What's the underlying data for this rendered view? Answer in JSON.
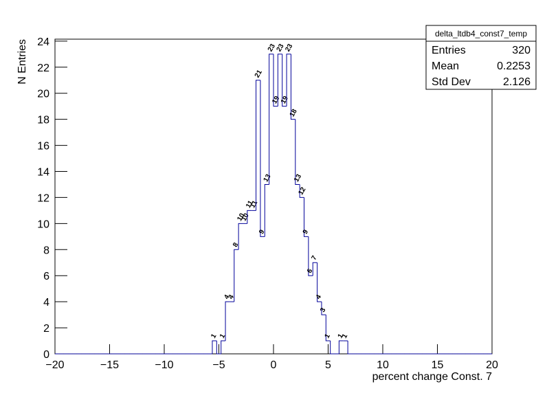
{
  "chart_data": {
    "type": "histogram",
    "x_label": "percent change Const. 7",
    "y_label": "N Entries",
    "color": "#000099",
    "bins": [
      -20,
      -19.6,
      -19.2,
      -18.8,
      -18.4,
      -18,
      -17.6,
      -17.2,
      -16.8,
      -16.4,
      -16,
      -15.6,
      -15.2,
      -14.8,
      -14.4,
      -14,
      -13.6,
      -13.2,
      -12.8,
      -12.4,
      -12,
      -11.6,
      -11.2,
      -10.8,
      -10.4,
      -10,
      -9.6,
      -9.2,
      -8.8,
      -8.4,
      -8,
      -7.6,
      -7.2,
      -6.8,
      -6.4,
      -6,
      -5.6,
      -5.2,
      -4.8,
      -4.4,
      -4,
      -3.6,
      -3.2,
      -2.8,
      -2.4,
      -2,
      -1.6,
      -1.2,
      -0.8,
      -0.4,
      0,
      0.4,
      0.8,
      1.2,
      1.6,
      2,
      2.4,
      2.8,
      3.2,
      3.6,
      4,
      4.4,
      4.8,
      5.2,
      5.6,
      6,
      6.4,
      6.8,
      7.2,
      7.6,
      8,
      8.4,
      8.8,
      9.2,
      9.6,
      10,
      10.4,
      10.8,
      11.2,
      11.6,
      12,
      12.4,
      12.8,
      13.2,
      13.6,
      14,
      14.4,
      14.8,
      15.2,
      15.6,
      16,
      16.4,
      16.8,
      17.2,
      17.6,
      18,
      18.4,
      18.8,
      19.2,
      19.6,
      20
    ],
    "values": [
      0,
      0,
      0,
      0,
      0,
      0,
      0,
      0,
      0,
      0,
      0,
      0,
      0,
      0,
      0,
      0,
      0,
      0,
      0,
      0,
      0,
      0,
      0,
      0,
      0,
      0,
      0,
      0,
      0,
      0,
      0,
      0,
      0,
      0,
      0,
      0,
      1,
      0,
      1,
      4,
      4,
      8,
      10,
      10,
      11,
      11,
      21,
      9,
      13,
      23,
      19,
      23,
      19,
      23,
      18,
      13,
      12,
      9,
      6,
      7,
      4,
      3,
      1,
      0,
      0,
      1,
      1,
      0,
      0,
      0,
      0,
      0,
      0,
      0,
      0,
      0,
      0,
      0,
      0,
      0,
      0,
      0,
      0,
      0,
      0,
      0,
      0,
      0,
      0,
      0,
      0,
      0,
      0,
      0,
      0,
      0,
      0,
      0,
      0,
      0
    ],
    "xlim": [
      -20,
      20
    ],
    "xticks": [
      {
        "value": -20,
        "label": "−20"
      },
      {
        "value": -15,
        "label": "−15"
      },
      {
        "value": -10,
        "label": "−10"
      },
      {
        "value": -5,
        "label": "−5"
      },
      0,
      5,
      10,
      15,
      20
    ],
    "ylim": [
      0,
      24.15
    ],
    "yticks": [
      0,
      2,
      4,
      6,
      8,
      10,
      12,
      14,
      16,
      18,
      20,
      22,
      24
    ],
    "stats": {
      "title": "delta_ltdb4_const7_temp",
      "rows": [
        [
          "Entries",
          "320"
        ],
        [
          "Mean",
          "0.2253"
        ],
        [
          "Std Dev",
          "2.126"
        ]
      ]
    }
  }
}
